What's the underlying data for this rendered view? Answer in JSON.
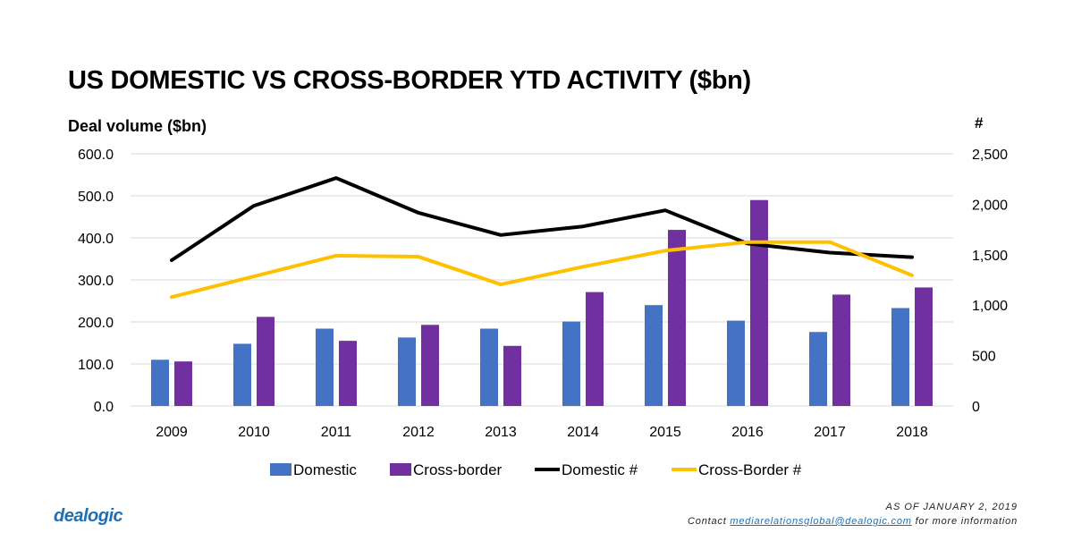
{
  "page": {
    "title": "US DOMESTIC VS CROSS-BORDER YTD ACTIVITY ($bn)",
    "brand_logo": "dealogic",
    "as_of": "AS OF JANUARY 2, 2019",
    "contact_prefix": "Contact",
    "contact_email": "mediarelationsglobal@dealogic.com",
    "contact_suffix": "for more information"
  },
  "colors": {
    "domestic": "#4472c4",
    "cross_border": "#7030a0",
    "domestic_count": "#000000",
    "cross_border_count": "#ffc000",
    "grid": "#d9d9d9",
    "brand": "#1f6fb5"
  },
  "chart_data": {
    "type": "bar",
    "ylabel": "Deal volume ($bn)",
    "y2label": "#",
    "categories": [
      "2009",
      "2010",
      "2011",
      "2012",
      "2013",
      "2014",
      "2015",
      "2016",
      "2017",
      "2018"
    ],
    "ylim": [
      0,
      600
    ],
    "yticks": [
      "0.0",
      "100.0",
      "200.0",
      "300.0",
      "400.0",
      "500.0",
      "600.0"
    ],
    "y2lim": [
      0,
      2500
    ],
    "y2ticks": [
      "0",
      "500",
      "1,000",
      "1,500",
      "2,000",
      "2,500"
    ],
    "grid": true,
    "legend_position": "bottom",
    "series": [
      {
        "name": "Domestic",
        "type": "bar",
        "axis": "left",
        "values": [
          110,
          148,
          184,
          163,
          184,
          201,
          240,
          203,
          176,
          233
        ]
      },
      {
        "name": "Cross-border",
        "type": "bar",
        "axis": "left",
        "values": [
          106,
          212,
          155,
          193,
          143,
          271,
          419,
          490,
          265,
          282
        ]
      },
      {
        "name": "Domestic #",
        "type": "line",
        "axis": "right",
        "values": [
          1445,
          1985,
          2260,
          1915,
          1695,
          1780,
          1940,
          1610,
          1520,
          1475
        ]
      },
      {
        "name": "Cross-Border #",
        "type": "line",
        "axis": "right",
        "values": [
          1080,
          1285,
          1490,
          1480,
          1205,
          1380,
          1540,
          1625,
          1625,
          1295
        ]
      }
    ]
  }
}
